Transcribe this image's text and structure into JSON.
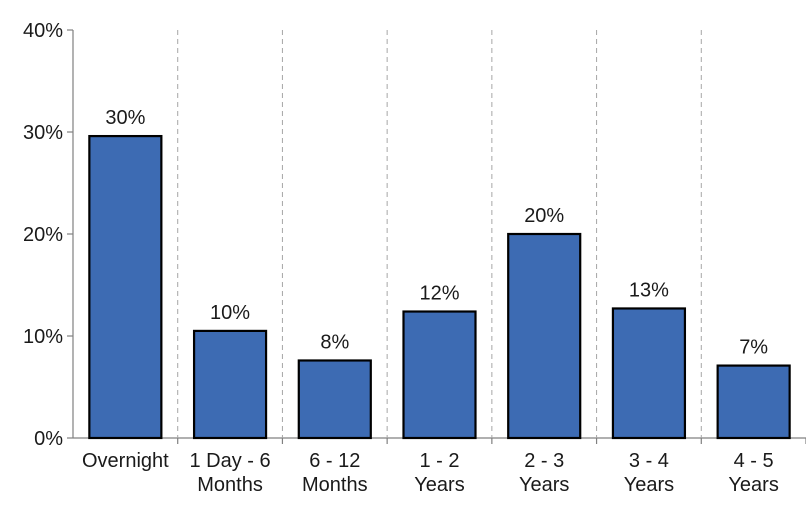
{
  "chart_data": {
    "type": "bar",
    "title": "",
    "xlabel": "",
    "ylabel": "",
    "categories": [
      [
        "Overnight"
      ],
      [
        "1 Day - 6",
        "Months"
      ],
      [
        "6 - 12",
        "Months"
      ],
      [
        "1 - 2",
        "Years"
      ],
      [
        "2 - 3",
        "Years"
      ],
      [
        "3 - 4",
        "Years"
      ],
      [
        "4 - 5",
        "Years"
      ]
    ],
    "values": [
      29.6,
      10.5,
      7.6,
      12.4,
      20.0,
      12.7,
      7.1
    ],
    "data_labels": [
      "30%",
      "10%",
      "8%",
      "12%",
      "20%",
      "13%",
      "7%"
    ],
    "y_ticks": [
      0,
      10,
      20,
      30,
      40
    ],
    "y_tick_labels": [
      "0%",
      "10%",
      "20%",
      "30%",
      "40%"
    ],
    "ylim": [
      0,
      40
    ],
    "bar_color": "#3d6bb3",
    "bar_edge_color": "#000000",
    "separator_color": "#a6a6a6",
    "grid": false,
    "legend": "none"
  }
}
